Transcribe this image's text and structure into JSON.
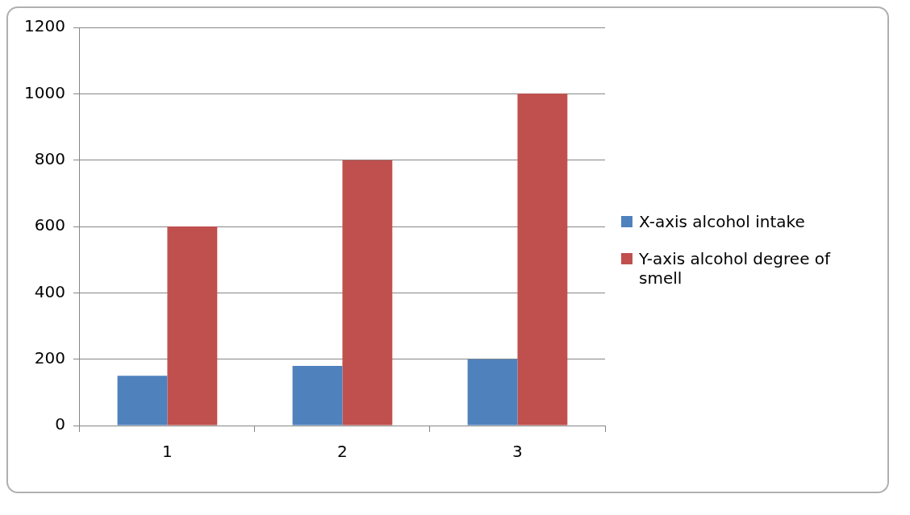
{
  "chart_data": {
    "type": "bar",
    "categories": [
      "1",
      "2",
      "3"
    ],
    "series": [
      {
        "name": "X-axis alcohol intake",
        "color": "#4f81bd",
        "values": [
          150,
          180,
          200
        ]
      },
      {
        "name": "Y-axis alcohol degree of smell",
        "color": "#c0504d",
        "values": [
          600,
          800,
          1000
        ]
      }
    ],
    "ylim": [
      0,
      1200
    ],
    "yticks": [
      0,
      200,
      400,
      600,
      800,
      1000,
      1200
    ],
    "grid": "y",
    "legend": "right"
  }
}
